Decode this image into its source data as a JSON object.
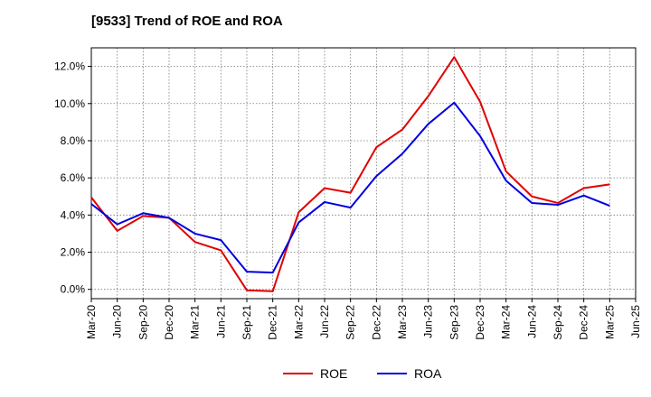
{
  "chart_data": {
    "type": "line",
    "title": "[9533]  Trend of ROE and ROA",
    "xlabel": "",
    "ylabel": "",
    "x": [
      "Mar-20",
      "Jun-20",
      "Sep-20",
      "Dec-20",
      "Mar-21",
      "Jun-21",
      "Sep-21",
      "Dec-21",
      "Mar-22",
      "Jun-22",
      "Sep-22",
      "Dec-22",
      "Mar-23",
      "Jun-23",
      "Sep-23",
      "Dec-23",
      "Mar-24",
      "Jun-24",
      "Sep-24",
      "Dec-24",
      "Mar-25"
    ],
    "x_ticks": [
      "Mar-20",
      "Jun-20",
      "Sep-20",
      "Dec-20",
      "Mar-21",
      "Jun-21",
      "Sep-21",
      "Dec-21",
      "Mar-22",
      "Jun-22",
      "Sep-22",
      "Dec-22",
      "Mar-23",
      "Jun-23",
      "Sep-23",
      "Dec-23",
      "Mar-24",
      "Jun-24",
      "Sep-24",
      "Dec-24",
      "Mar-25",
      "Jun-25"
    ],
    "y_ticks": [
      "0.0%",
      "2.0%",
      "4.0%",
      "6.0%",
      "8.0%",
      "10.0%",
      "12.0%"
    ],
    "y_tick_values": [
      0,
      2,
      4,
      6,
      8,
      10,
      12
    ],
    "ylim": [
      -0.5,
      13.0
    ],
    "grid": true,
    "legend_position": "bottom-center",
    "series": [
      {
        "name": "ROE",
        "color": "#e00000",
        "values": [
          4.95,
          3.15,
          3.95,
          3.85,
          2.55,
          2.1,
          -0.05,
          -0.1,
          4.15,
          5.45,
          5.2,
          7.65,
          8.6,
          10.4,
          12.5,
          10.1,
          6.35,
          5.0,
          4.65,
          5.45,
          5.65
        ]
      },
      {
        "name": "ROA",
        "color": "#0000e0",
        "values": [
          4.6,
          3.5,
          4.1,
          3.85,
          3.0,
          2.65,
          0.95,
          0.9,
          3.6,
          4.7,
          4.4,
          6.1,
          7.3,
          8.9,
          10.05,
          8.25,
          5.85,
          4.65,
          4.55,
          5.05,
          4.5
        ]
      }
    ]
  }
}
